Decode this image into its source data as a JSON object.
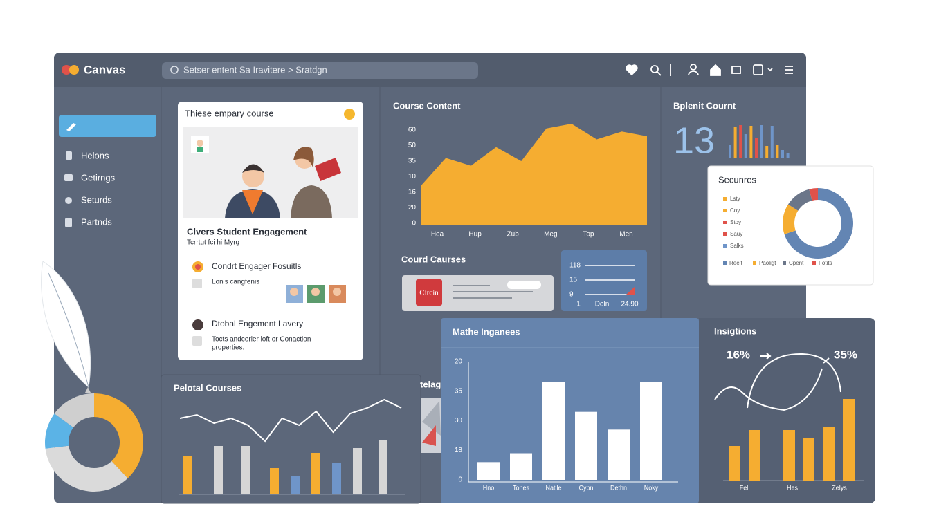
{
  "header": {
    "logo": "Canvas",
    "search": "Setser entent Sa Iravitere  >  Sratdgn"
  },
  "sidebar": {
    "items": [
      "Helons",
      "Getirngs",
      "Seturds",
      "Partnds"
    ]
  },
  "course_card": {
    "title": "Thiese empary course",
    "heading": "Clvers Student Engagement",
    "subheading": "Tcrrtut fci hi Myrg",
    "items": [
      {
        "title": "Condrt Engager Fosuitls",
        "text": "Lon's cangfenis"
      },
      {
        "title": "Dtobal Engement Lavery",
        "text": "Tocts andcerier loft or Conaction",
        "text2": "properties."
      }
    ]
  },
  "fragments": {
    "partial_title": "telag",
    "logo_card": "Circin"
  },
  "chart_data": [
    {
      "type": "area",
      "title": "Course Content",
      "color": "#f5ad31",
      "ylim": [
        0,
        60
      ],
      "y_labels": [
        "60",
        "50",
        "35",
        "10",
        "16",
        "20",
        "0"
      ],
      "x_labels": [
        "Hea",
        "Hup",
        "Zub",
        "Meg",
        "Top",
        "Men"
      ],
      "values": [
        24,
        42,
        37,
        49,
        40,
        61,
        64,
        54,
        59,
        56
      ]
    },
    {
      "type": "bar",
      "title": "Bplenit Cournt",
      "big_number": "13",
      "ylim": [
        0,
        50
      ],
      "values": [
        20,
        45,
        48,
        35,
        47,
        30,
        48,
        18,
        47,
        20,
        12,
        8
      ],
      "colors": [
        "#6f95c9",
        "#f5ad31",
        "#e0524a",
        "#6f95c9",
        "#f5ad31",
        "#e0524a",
        "#6f95c9",
        "#f5ad31",
        "#6f95c9",
        "#f5ad31",
        "#6f95c9",
        "#6f95c9"
      ]
    },
    {
      "type": "pie",
      "title": "Secunres",
      "key": [
        {
          "name": "Lsty",
          "color": "#f5ad31"
        },
        {
          "name": "Coy",
          "color": "#f5ad31"
        },
        {
          "name": "Stoy",
          "color": "#e0524a"
        },
        {
          "name": "Sauy",
          "color": "#e0524a"
        },
        {
          "name": "Salks",
          "color": "#6f95c9"
        }
      ],
      "categories": [
        "Reelt",
        "Paoligt",
        "Cpent",
        "Fotits"
      ],
      "values": [
        70,
        14,
        12,
        4
      ],
      "colors": [
        "#6385b3",
        "#f5ad31",
        "#6b7689",
        "#e0524a"
      ]
    },
    {
      "type": "line",
      "title": "Courd Caurses",
      "y_labels": [
        "118",
        "15",
        "9"
      ],
      "x_labels": [
        "1",
        "Deln",
        "24.90"
      ]
    },
    {
      "type": "combo",
      "title": "Pelotal Courses",
      "ylim": [
        0,
        140
      ],
      "values": [
        56,
        70,
        70,
        38,
        27,
        60,
        45,
        67,
        78
      ],
      "colors": [
        "#f5ad31",
        "#d6d6d6",
        "#d6d6d6",
        "#f5ad31",
        "#6f95c9",
        "#f5ad31",
        "#6f95c9",
        "#d6d6d6",
        "#d6d6d6"
      ],
      "line": [
        110,
        115,
        103,
        110,
        100,
        77,
        110,
        100,
        120,
        90,
        117,
        125,
        137,
        125
      ]
    },
    {
      "type": "bar",
      "title": "Mathe Inganees",
      "ylim": [
        0,
        40
      ],
      "color": "#ffffff",
      "y_labels": [
        "20",
        "35",
        "30",
        "18",
        "0"
      ],
      "categories": [
        "Hno",
        "Tones",
        "Natile",
        "Cypn",
        "Dethn",
        "Noky"
      ],
      "values": [
        6,
        9,
        33,
        23,
        17,
        33
      ]
    },
    {
      "type": "combo",
      "title": "Insigtions",
      "ylim": [
        0,
        120
      ],
      "color": "#f5ad31",
      "annotations": [
        "16%",
        "35%"
      ],
      "x_labels": [
        "Fel",
        "Hes",
        "Zelys"
      ],
      "values": [
        50,
        73,
        73,
        61,
        77,
        118
      ]
    },
    {
      "type": "pie",
      "values": [
        38,
        35,
        12,
        15
      ],
      "colors": [
        "#f5ad31",
        "#dadada",
        "#5bb3e6",
        "#cfcfcf"
      ]
    }
  ]
}
